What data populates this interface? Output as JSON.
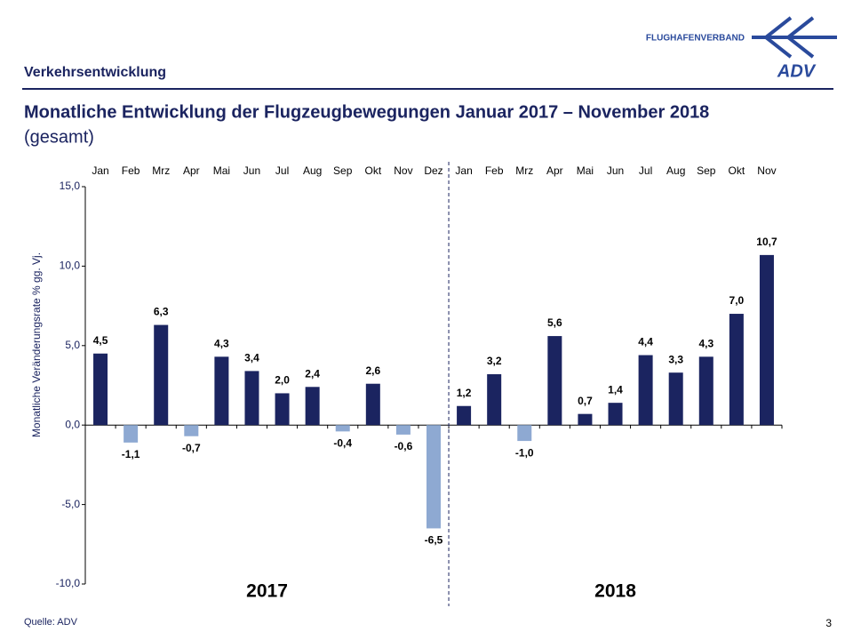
{
  "header": {
    "section": "Verkehrsentwicklung",
    "logo_name": "FLUGHAFENVERBAND",
    "logo_mark": "ADV"
  },
  "chart_data": {
    "type": "bar",
    "title": "Monatliche Entwicklung der Flugzeugbewegungen Januar 2017 – November 2018",
    "subtitle": "(gesamt)",
    "y_label": "Monatliche Veränderungsrate % gg. Vj.",
    "category_groups": [
      {
        "label": "2017",
        "categories": [
          "Jan",
          "Feb",
          "Mrz",
          "Apr",
          "Mai",
          "Jun",
          "Jul",
          "Aug",
          "Sep",
          "Okt",
          "Nov",
          "Dez"
        ]
      },
      {
        "label": "2018",
        "categories": [
          "Jan",
          "Feb",
          "Mrz",
          "Apr",
          "Mai",
          "Jun",
          "Jul",
          "Aug",
          "Sep",
          "Okt",
          "Nov"
        ]
      }
    ],
    "values": [
      4.5,
      -1.1,
      6.3,
      -0.7,
      4.3,
      3.4,
      2.0,
      2.4,
      -0.4,
      2.6,
      -0.6,
      -6.5,
      1.2,
      3.2,
      -1.0,
      5.6,
      0.7,
      1.4,
      4.4,
      3.3,
      4.3,
      7.0,
      10.7
    ],
    "value_labels": [
      "4,5",
      "-1,1",
      "6,3",
      "-0,7",
      "4,3",
      "3,4",
      "2,0",
      "2,4",
      "-0,4",
      "2,6",
      "-0,6",
      "-6,5",
      "1,2",
      "3,2",
      "-1,0",
      "5,6",
      "0,7",
      "1,4",
      "4,4",
      "3,3",
      "4,3",
      "7,0",
      "10,7"
    ],
    "color": "#1b2460",
    "negative_color": "#8ea9d2",
    "ylim": [
      -10,
      15
    ],
    "yticks": [
      {
        "value": -10,
        "label": "-10,0"
      },
      {
        "value": -5,
        "label": "-5,0"
      },
      {
        "value": 0,
        "label": "0,0"
      },
      {
        "value": 5,
        "label": "5,0"
      },
      {
        "value": 10,
        "label": "10,0"
      },
      {
        "value": 15,
        "label": "15,0"
      }
    ]
  },
  "footer": {
    "source": "Quelle: ADV",
    "page": "3"
  }
}
